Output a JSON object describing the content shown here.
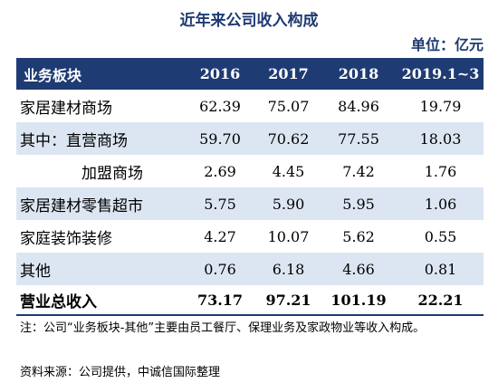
{
  "title": "近年来公司收入构成",
  "unit": "单位：亿元",
  "table": {
    "header": [
      "业务板块",
      "2016",
      "2017",
      "2018",
      "2019.1~3"
    ],
    "rows": [
      {
        "label": "家居建材商场",
        "values": [
          "62.39",
          "75.07",
          "84.96",
          "19.79"
        ]
      },
      {
        "label": "其中：直营商场",
        "values": [
          "59.70",
          "70.62",
          "77.55",
          "18.03"
        ]
      },
      {
        "label": "加盟商场",
        "values": [
          "2.69",
          "4.45",
          "7.42",
          "1.76"
        ]
      },
      {
        "label": "家居建材零售超市",
        "values": [
          "5.75",
          "5.90",
          "5.95",
          "1.06"
        ]
      },
      {
        "label": "家庭装饰装修",
        "values": [
          "4.27",
          "10.07",
          "5.62",
          "0.55"
        ]
      },
      {
        "label": "其他",
        "values": [
          "0.76",
          "6.18",
          "4.66",
          "0.81"
        ]
      },
      {
        "label": "营业总收入",
        "values": [
          "73.17",
          "97.21",
          "101.19",
          "22.21"
        ]
      }
    ]
  },
  "note": "注：公司“业务板块-其他”主要由员工餐厅、保理业务及家政物业等收入构成。",
  "source": "资料来源：公司提供，中诚信国际整理",
  "colors": {
    "header_bg": "#1f3b73",
    "row_shade": "#dce6f2"
  }
}
